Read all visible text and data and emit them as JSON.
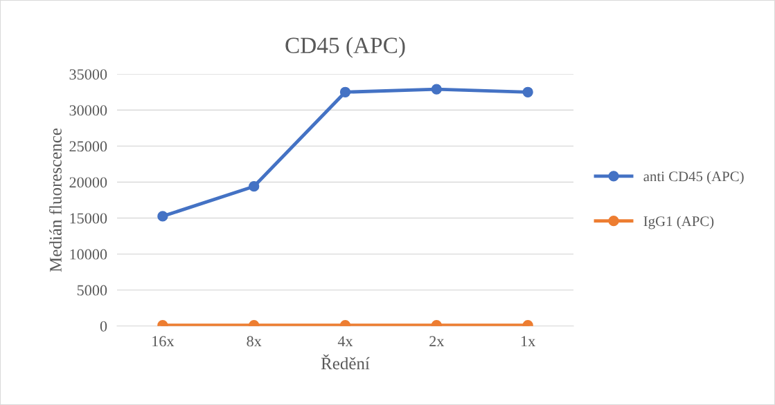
{
  "chart_data": {
    "type": "line",
    "title": "CD45 (APC)",
    "xlabel": "Ředění",
    "ylabel": "Medián fluorescence",
    "categories": [
      "16x",
      "8x",
      "4x",
      "2x",
      "1x"
    ],
    "series": [
      {
        "name": "anti CD45 (APC)",
        "color": "#4472c4",
        "values": [
          15250,
          19400,
          32500,
          32900,
          32500
        ]
      },
      {
        "name": "IgG1 (APC)",
        "color": "#ed7d31",
        "values": [
          100,
          100,
          100,
          100,
          100
        ]
      }
    ],
    "ylim": [
      0,
      35000
    ],
    "yticks": [
      0,
      5000,
      10000,
      15000,
      20000,
      25000,
      30000,
      35000
    ],
    "grid": "y",
    "legend": "right",
    "marker": "circle",
    "line_style": "solid"
  }
}
